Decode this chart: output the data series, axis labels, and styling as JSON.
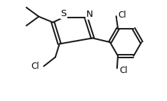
{
  "bg_color": "#ffffff",
  "bond_color": "#1a1a1a",
  "line_width": 1.5,
  "font_size": 8.5,
  "fig_width": 2.38,
  "fig_height": 1.44,
  "dpi": 100,
  "xlim": [
    0,
    10
  ],
  "ylim": [
    0,
    6.1
  ]
}
